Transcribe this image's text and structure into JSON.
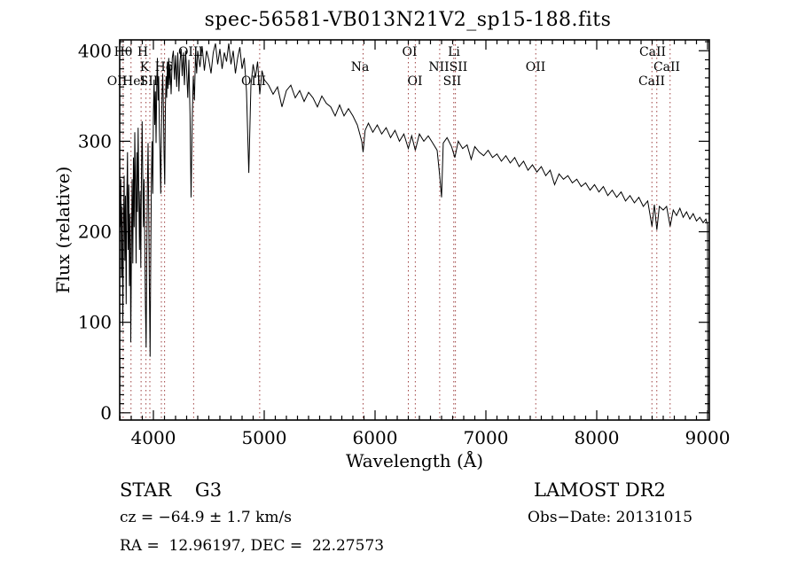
{
  "title": "spec-56581-VB013N21V2_sp15-188.fits",
  "annotations": {
    "class_label": "STAR    G3",
    "survey_label": "LAMOST DR2",
    "cz_label": "cz = −64.9 ± 1.7 km/s",
    "obs_date_label": "Obs−Date: 20131015",
    "coords_label": "RA =  12.96197, DEC =  22.27573"
  },
  "colors": {
    "frame": "#000000",
    "spectrum": "#000000",
    "marker_line": "#9e4040",
    "text": "#000000",
    "background": "#ffffff"
  },
  "chart_data": {
    "type": "line",
    "title": "spec-56581-VB013N21V2_sp15-188.fits",
    "xlabel": "Wavelength (Å)",
    "ylabel": "Flux (relative)",
    "xlim": [
      3696,
      9016
    ],
    "ylim": [
      -8,
      412
    ],
    "grid": false,
    "legend_position": "none",
    "x_major_ticks": [
      4000,
      5000,
      6000,
      7000,
      8000,
      9000
    ],
    "x_minor_step": 100,
    "y_major_ticks": [
      0,
      100,
      200,
      300,
      400
    ],
    "y_minor_step": 10,
    "marker_wavelengths": [
      3727,
      3798,
      3889,
      3933,
      3968,
      4072,
      4101,
      4363,
      4959,
      5892,
      6300,
      6363,
      6583,
      6710,
      6725,
      7450,
      8498,
      8542,
      8662
    ],
    "line_labels": [
      {
        "text": "Hθ",
        "wl": 3728,
        "row": 0
      },
      {
        "text": "H",
        "wl": 3904,
        "row": 0
      },
      {
        "text": "OIII",
        "wl": 4336,
        "row": 0
      },
      {
        "text": "OI",
        "wl": 6312,
        "row": 0
      },
      {
        "text": "Li",
        "wl": 6712,
        "row": 0
      },
      {
        "text": "CaII",
        "wl": 8504,
        "row": 0
      },
      {
        "text": "K",
        "wl": 3920,
        "row": 1
      },
      {
        "text": "Hδ",
        "wl": 4096,
        "row": 1
      },
      {
        "text": "Na",
        "wl": 5864,
        "row": 1
      },
      {
        "text": "NII",
        "wl": 6576,
        "row": 1
      },
      {
        "text": "SII",
        "wl": 6752,
        "row": 1
      },
      {
        "text": "OII",
        "wl": 7448,
        "row": 1
      },
      {
        "text": "CaII",
        "wl": 8632,
        "row": 1
      },
      {
        "text": "OII",
        "wl": 3672,
        "row": 2
      },
      {
        "text": "HeI",
        "wl": 3824,
        "row": 2
      },
      {
        "text": "SII",
        "wl": 3960,
        "row": 2
      },
      {
        "text": "OIII",
        "wl": 4904,
        "row": 2
      },
      {
        "text": "OI",
        "wl": 6360,
        "row": 2
      },
      {
        "text": "SII",
        "wl": 6696,
        "row": 2
      },
      {
        "text": "CaII",
        "wl": 8496,
        "row": 2
      }
    ],
    "series": [
      {
        "name": "spectrum",
        "color": "#000000",
        "points": [
          [
            3700,
            205
          ],
          [
            3706,
            258
          ],
          [
            3712,
            150
          ],
          [
            3718,
            228
          ],
          [
            3724,
            96
          ],
          [
            3730,
            205
          ],
          [
            3736,
            262
          ],
          [
            3742,
            168
          ],
          [
            3748,
            240
          ],
          [
            3754,
            120
          ],
          [
            3760,
            235
          ],
          [
            3766,
            288
          ],
          [
            3772,
            180
          ],
          [
            3778,
            252
          ],
          [
            3784,
            140
          ],
          [
            3790,
            220
          ],
          [
            3796,
            78
          ],
          [
            3802,
            185
          ],
          [
            3808,
            258
          ],
          [
            3814,
            165
          ],
          [
            3820,
            282
          ],
          [
            3826,
            205
          ],
          [
            3832,
            310
          ],
          [
            3838,
            248
          ],
          [
            3844,
            165
          ],
          [
            3850,
            288
          ],
          [
            3856,
            222
          ],
          [
            3862,
            315
          ],
          [
            3868,
            252
          ],
          [
            3874,
            180
          ],
          [
            3880,
            245
          ],
          [
            3886,
            160
          ],
          [
            3892,
            260
          ],
          [
            3898,
            322
          ],
          [
            3904,
            262
          ],
          [
            3910,
            205
          ],
          [
            3916,
            258
          ],
          [
            3922,
            185
          ],
          [
            3928,
            120
          ],
          [
            3934,
            72
          ],
          [
            3940,
            172
          ],
          [
            3946,
            255
          ],
          [
            3952,
            298
          ],
          [
            3958,
            215
          ],
          [
            3964,
            135
          ],
          [
            3970,
            62
          ],
          [
            3976,
            170
          ],
          [
            3982,
            262
          ],
          [
            3988,
            300
          ],
          [
            3994,
            242
          ],
          [
            4000,
            330
          ],
          [
            4006,
            368
          ],
          [
            4012,
            318
          ],
          [
            4018,
            355
          ],
          [
            4024,
            298
          ],
          [
            4030,
            362
          ],
          [
            4036,
            392
          ],
          [
            4042,
            345
          ],
          [
            4048,
            372
          ],
          [
            4054,
            312
          ],
          [
            4060,
            285
          ],
          [
            4066,
            242
          ],
          [
            4072,
            308
          ],
          [
            4078,
            352
          ],
          [
            4084,
            375
          ],
          [
            4090,
            338
          ],
          [
            4096,
            288
          ],
          [
            4102,
            252
          ],
          [
            4108,
            335
          ],
          [
            4114,
            372
          ],
          [
            4120,
            348
          ],
          [
            4126,
            388
          ],
          [
            4132,
            358
          ],
          [
            4138,
            392
          ],
          [
            4144,
            362
          ],
          [
            4150,
            385
          ],
          [
            4160,
            352
          ],
          [
            4170,
            392
          ],
          [
            4180,
            400
          ],
          [
            4190,
            368
          ],
          [
            4200,
            395
          ],
          [
            4210,
            360
          ],
          [
            4220,
            398
          ],
          [
            4230,
            355
          ],
          [
            4240,
            388
          ],
          [
            4250,
            402
          ],
          [
            4260,
            372
          ],
          [
            4270,
            398
          ],
          [
            4280,
            362
          ],
          [
            4290,
            400
          ],
          [
            4300,
            378
          ],
          [
            4310,
            348
          ],
          [
            4320,
            390
          ],
          [
            4330,
            330
          ],
          [
            4340,
            238
          ],
          [
            4350,
            325
          ],
          [
            4360,
            372
          ],
          [
            4370,
            345
          ],
          [
            4380,
            398
          ],
          [
            4390,
            375
          ],
          [
            4400,
            400
          ],
          [
            4420,
            382
          ],
          [
            4440,
            405
          ],
          [
            4460,
            378
          ],
          [
            4480,
            400
          ],
          [
            4500,
            390
          ],
          [
            4520,
            375
          ],
          [
            4540,
            398
          ],
          [
            4560,
            408
          ],
          [
            4580,
            385
          ],
          [
            4600,
            402
          ],
          [
            4620,
            380
          ],
          [
            4640,
            398
          ],
          [
            4660,
            388
          ],
          [
            4680,
            408
          ],
          [
            4700,
            385
          ],
          [
            4720,
            400
          ],
          [
            4740,
            375
          ],
          [
            4760,
            392
          ],
          [
            4780,
            404
          ],
          [
            4800,
            380
          ],
          [
            4820,
            392
          ],
          [
            4840,
            355
          ],
          [
            4861,
            265
          ],
          [
            4880,
            362
          ],
          [
            4900,
            385
          ],
          [
            4920,
            370
          ],
          [
            4940,
            388
          ],
          [
            4960,
            352
          ],
          [
            4980,
            378
          ],
          [
            5000,
            368
          ],
          [
            5040,
            362
          ],
          [
            5080,
            352
          ],
          [
            5120,
            360
          ],
          [
            5160,
            338
          ],
          [
            5200,
            356
          ],
          [
            5240,
            362
          ],
          [
            5280,
            348
          ],
          [
            5320,
            356
          ],
          [
            5360,
            344
          ],
          [
            5400,
            354
          ],
          [
            5440,
            348
          ],
          [
            5480,
            338
          ],
          [
            5520,
            350
          ],
          [
            5560,
            342
          ],
          [
            5600,
            338
          ],
          [
            5640,
            328
          ],
          [
            5680,
            340
          ],
          [
            5720,
            328
          ],
          [
            5760,
            336
          ],
          [
            5800,
            328
          ],
          [
            5840,
            318
          ],
          [
            5880,
            300
          ],
          [
            5892,
            288
          ],
          [
            5910,
            312
          ],
          [
            5940,
            320
          ],
          [
            5980,
            310
          ],
          [
            6020,
            318
          ],
          [
            6060,
            308
          ],
          [
            6100,
            315
          ],
          [
            6140,
            304
          ],
          [
            6180,
            312
          ],
          [
            6220,
            300
          ],
          [
            6260,
            308
          ],
          [
            6300,
            292
          ],
          [
            6330,
            306
          ],
          [
            6363,
            290
          ],
          [
            6400,
            308
          ],
          [
            6440,
            300
          ],
          [
            6480,
            306
          ],
          [
            6520,
            298
          ],
          [
            6560,
            290
          ],
          [
            6583,
            262
          ],
          [
            6600,
            238
          ],
          [
            6615,
            298
          ],
          [
            6650,
            304
          ],
          [
            6690,
            294
          ],
          [
            6720,
            282
          ],
          [
            6750,
            300
          ],
          [
            6790,
            292
          ],
          [
            6830,
            296
          ],
          [
            6867,
            280
          ],
          [
            6900,
            294
          ],
          [
            6940,
            288
          ],
          [
            6980,
            284
          ],
          [
            7020,
            290
          ],
          [
            7060,
            282
          ],
          [
            7100,
            286
          ],
          [
            7140,
            278
          ],
          [
            7180,
            284
          ],
          [
            7220,
            276
          ],
          [
            7260,
            282
          ],
          [
            7300,
            272
          ],
          [
            7340,
            278
          ],
          [
            7380,
            268
          ],
          [
            7420,
            274
          ],
          [
            7460,
            266
          ],
          [
            7500,
            272
          ],
          [
            7540,
            262
          ],
          [
            7580,
            268
          ],
          [
            7620,
            252
          ],
          [
            7660,
            264
          ],
          [
            7700,
            258
          ],
          [
            7740,
            262
          ],
          [
            7780,
            254
          ],
          [
            7820,
            258
          ],
          [
            7860,
            250
          ],
          [
            7900,
            254
          ],
          [
            7940,
            246
          ],
          [
            7980,
            252
          ],
          [
            8020,
            244
          ],
          [
            8060,
            250
          ],
          [
            8100,
            240
          ],
          [
            8140,
            246
          ],
          [
            8180,
            238
          ],
          [
            8220,
            244
          ],
          [
            8260,
            234
          ],
          [
            8300,
            240
          ],
          [
            8340,
            232
          ],
          [
            8380,
            238
          ],
          [
            8420,
            228
          ],
          [
            8460,
            234
          ],
          [
            8498,
            206
          ],
          [
            8520,
            230
          ],
          [
            8542,
            202
          ],
          [
            8565,
            228
          ],
          [
            8600,
            224
          ],
          [
            8630,
            228
          ],
          [
            8662,
            206
          ],
          [
            8690,
            224
          ],
          [
            8720,
            218
          ],
          [
            8750,
            226
          ],
          [
            8780,
            216
          ],
          [
            8810,
            222
          ],
          [
            8840,
            214
          ],
          [
            8870,
            220
          ],
          [
            8900,
            212
          ],
          [
            8930,
            216
          ],
          [
            8960,
            210
          ],
          [
            8985,
            214
          ],
          [
            9000,
            208
          ],
          [
            9002,
            0
          ],
          [
            9010,
            0
          ]
        ]
      }
    ]
  }
}
